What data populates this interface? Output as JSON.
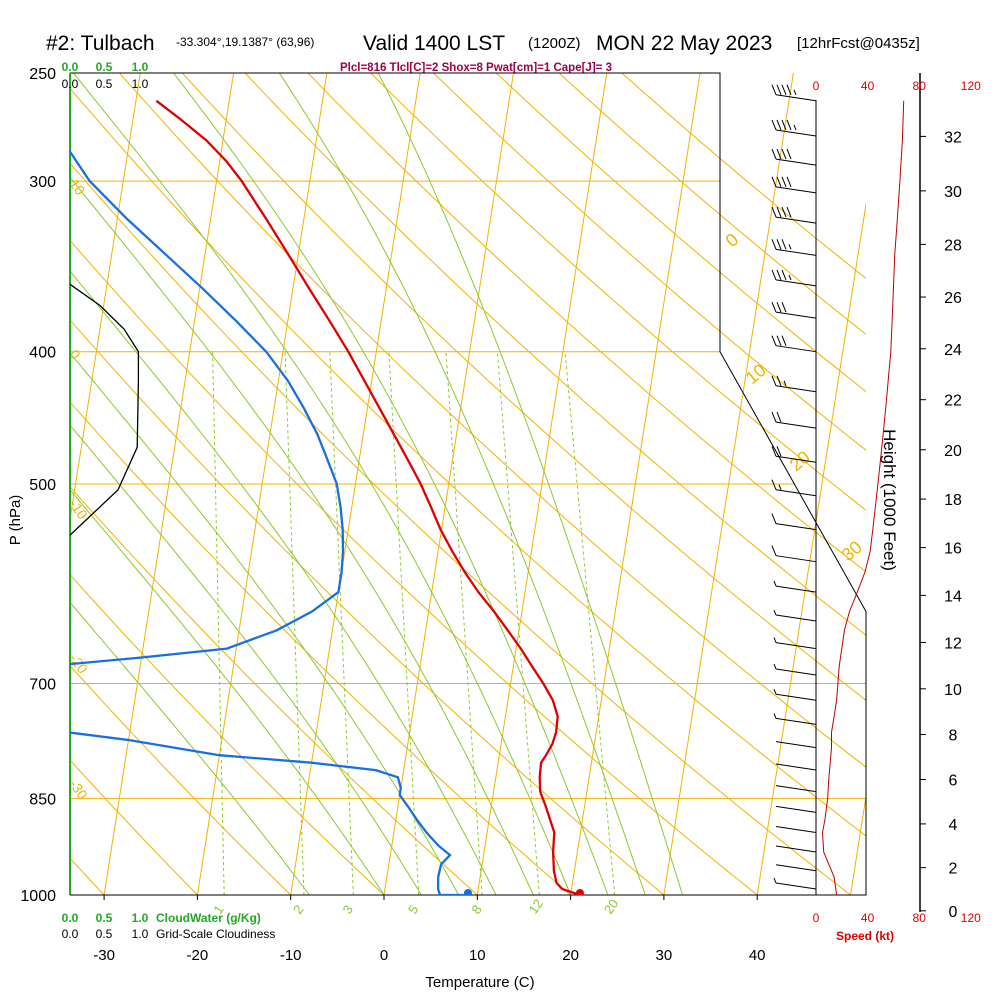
{
  "header": {
    "station": "#2: Tulbach",
    "coords": "-33.304°,19.1387° (63,96)",
    "valid": "Valid 1400 LST",
    "utc": "(1200Z)",
    "date": "MON 22 May 2023",
    "fcst": "[12hrFcst@0435z]",
    "params": "Plcl=816 Tlcl[C]=2 Shox=8 Pwat[cm]=1 Cape[J]= 3"
  },
  "colors": {
    "isotherm": "#f0b400",
    "dry_adiabat": "#f0b400",
    "moist_adiabat": "#8cc832",
    "mixing_ratio": "#8cc832",
    "temperature": "#e00000",
    "dewpoint": "#1a6fe0",
    "cloud": "#000000",
    "speed": "#c00000",
    "green_label": "#22aa22",
    "param_text": "#a0004a"
  },
  "chart_data": {
    "type": "skew-t",
    "xlabel": "Temperature (C)",
    "ylabel": "P (hPa)",
    "right_ylabel": "Height (1000 Feet)",
    "x_ticks": [
      "-30",
      "-20",
      "-10",
      "0",
      "10",
      "20",
      "30",
      "40"
    ],
    "x_tick_values": [
      -30,
      -20,
      -10,
      0,
      10,
      20,
      30,
      40
    ],
    "p_ticks": [
      "250",
      "300",
      "400",
      "500",
      "700",
      "850",
      "1000"
    ],
    "p_tick_values": [
      250,
      300,
      400,
      500,
      700,
      850,
      1000
    ],
    "height_ticks": [
      "0",
      "2",
      "4",
      "6",
      "8",
      "10",
      "12",
      "14",
      "16",
      "18",
      "20",
      "22",
      "24",
      "26",
      "28",
      "30",
      "32"
    ],
    "height_tick_values": [
      0,
      2,
      4,
      6,
      8,
      10,
      12,
      14,
      16,
      18,
      20,
      22,
      24,
      26,
      28,
      30,
      32
    ],
    "cloud_top_ticks": [
      "0.0",
      "0.5",
      "1.0"
    ],
    "cloud_bottom_ticks": [
      "0.0",
      "0.5",
      "1.0"
    ],
    "cloud_top_label": "Grid-Scale Cloudiness",
    "cloudwater_label": "CloudWater (g/Kg)",
    "speed_ticks": [
      "0",
      "40",
      "80",
      "120"
    ],
    "speed_tick_values": [
      0,
      40,
      80,
      120
    ],
    "speed_label": "Speed (kt)",
    "isotherm_labels": [
      "10",
      "0",
      "-10",
      "-20",
      "-30"
    ],
    "theta_labels": [
      "0",
      "10",
      "20",
      "30"
    ],
    "mixing_ratio_labels": [
      "1",
      "2",
      "3",
      "5",
      "8",
      "12",
      "20"
    ],
    "mixing_ratio_values": [
      1,
      2,
      3,
      5,
      8,
      12,
      20
    ],
    "temperature": [
      {
        "p": 1000,
        "t": 21.0
      },
      {
        "p": 995,
        "t": 20.0
      },
      {
        "p": 990,
        "t": 19.0
      },
      {
        "p": 980,
        "t": 18.3
      },
      {
        "p": 960,
        "t": 17.8
      },
      {
        "p": 930,
        "t": 17.4
      },
      {
        "p": 900,
        "t": 17.2
      },
      {
        "p": 880,
        "t": 16.5
      },
      {
        "p": 860,
        "t": 15.8
      },
      {
        "p": 840,
        "t": 15.0
      },
      {
        "p": 820,
        "t": 14.7
      },
      {
        "p": 800,
        "t": 14.6
      },
      {
        "p": 790,
        "t": 15.0
      },
      {
        "p": 775,
        "t": 15.5
      },
      {
        "p": 760,
        "t": 15.7
      },
      {
        "p": 740,
        "t": 15.6
      },
      {
        "p": 720,
        "t": 14.8
      },
      {
        "p": 700,
        "t": 13.5
      },
      {
        "p": 680,
        "t": 12.0
      },
      {
        "p": 660,
        "t": 10.5
      },
      {
        "p": 640,
        "t": 8.8
      },
      {
        "p": 620,
        "t": 7.0
      },
      {
        "p": 600,
        "t": 5.0
      },
      {
        "p": 580,
        "t": 3.2
      },
      {
        "p": 560,
        "t": 1.5
      },
      {
        "p": 540,
        "t": -0.1
      },
      {
        "p": 520,
        "t": -1.5
      },
      {
        "p": 500,
        "t": -3.0
      },
      {
        "p": 480,
        "t": -4.8
      },
      {
        "p": 460,
        "t": -6.7
      },
      {
        "p": 440,
        "t": -8.7
      },
      {
        "p": 420,
        "t": -10.8
      },
      {
        "p": 400,
        "t": -13.0
      },
      {
        "p": 380,
        "t": -15.5
      },
      {
        "p": 360,
        "t": -18.2
      },
      {
        "p": 340,
        "t": -21.0
      },
      {
        "p": 320,
        "t": -24.0
      },
      {
        "p": 300,
        "t": -27.3
      },
      {
        "p": 290,
        "t": -29.3
      },
      {
        "p": 280,
        "t": -31.8
      },
      {
        "p": 270,
        "t": -35.0
      },
      {
        "p": 262,
        "t": -37.8
      }
    ],
    "dewpoint": [
      {
        "p": 1000,
        "t": 9.0
      },
      {
        "p": 1000,
        "t": 6.0
      },
      {
        "p": 990,
        "t": 5.7
      },
      {
        "p": 970,
        "t": 5.5
      },
      {
        "p": 950,
        "t": 5.6
      },
      {
        "p": 935,
        "t": 6.4
      },
      {
        "p": 920,
        "t": 5.0
      },
      {
        "p": 900,
        "t": 3.5
      },
      {
        "p": 880,
        "t": 2.2
      },
      {
        "p": 860,
        "t": 1.0
      },
      {
        "p": 845,
        "t": 0.0
      },
      {
        "p": 835,
        "t": 0.0
      },
      {
        "p": 820,
        "t": -0.5
      },
      {
        "p": 810,
        "t": -3.0
      },
      {
        "p": 800,
        "t": -10.0
      },
      {
        "p": 790,
        "t": -20.0
      },
      {
        "p": 770,
        "t": -30.0
      },
      {
        "p": 755,
        "t": -40.0
      },
      {
        "p": 748,
        "t": -46.0
      },
      {
        "p": 700,
        "t": -60.0
      },
      {
        "p": 690,
        "t": -50.0
      },
      {
        "p": 680,
        "t": -40.0
      },
      {
        "p": 670,
        "t": -30.0
      },
      {
        "p": 660,
        "t": -21.0
      },
      {
        "p": 640,
        "t": -16.0
      },
      {
        "p": 620,
        "t": -12.5
      },
      {
        "p": 600,
        "t": -10.0
      },
      {
        "p": 580,
        "t": -10.0
      },
      {
        "p": 560,
        "t": -10.2
      },
      {
        "p": 540,
        "t": -10.6
      },
      {
        "p": 520,
        "t": -11.2
      },
      {
        "p": 500,
        "t": -12.0
      },
      {
        "p": 480,
        "t": -13.4
      },
      {
        "p": 460,
        "t": -14.9
      },
      {
        "p": 440,
        "t": -16.8
      },
      {
        "p": 420,
        "t": -19.0
      },
      {
        "p": 400,
        "t": -21.8
      },
      {
        "p": 380,
        "t": -25.5
      },
      {
        "p": 360,
        "t": -29.6
      },
      {
        "p": 340,
        "t": -34.1
      },
      {
        "p": 320,
        "t": -38.9
      },
      {
        "p": 300,
        "t": -43.6
      },
      {
        "p": 285,
        "t": -46.3
      },
      {
        "p": 270,
        "t": -48.4
      },
      {
        "p": 262,
        "t": -49.3
      }
    ],
    "cloudiness": [
      {
        "p": 357,
        "c": 0.0
      },
      {
        "p": 370,
        "c": 0.25
      },
      {
        "p": 385,
        "c": 0.45
      },
      {
        "p": 400,
        "c": 0.57
      },
      {
        "p": 420,
        "c": 0.57
      },
      {
        "p": 470,
        "c": 0.56
      },
      {
        "p": 505,
        "c": 0.4
      },
      {
        "p": 545,
        "c": 0.0
      }
    ],
    "speed": [
      {
        "p": 1000,
        "s": 16
      },
      {
        "p": 970,
        "s": 14
      },
      {
        "p": 950,
        "s": 10
      },
      {
        "p": 930,
        "s": 6
      },
      {
        "p": 900,
        "s": 5
      },
      {
        "p": 880,
        "s": 7
      },
      {
        "p": 850,
        "s": 9
      },
      {
        "p": 820,
        "s": 10
      },
      {
        "p": 800,
        "s": 11
      },
      {
        "p": 780,
        "s": 12
      },
      {
        "p": 760,
        "s": 12
      },
      {
        "p": 740,
        "s": 14
      },
      {
        "p": 720,
        "s": 16
      },
      {
        "p": 700,
        "s": 17
      },
      {
        "p": 680,
        "s": 18
      },
      {
        "p": 660,
        "s": 20
      },
      {
        "p": 640,
        "s": 22
      },
      {
        "p": 620,
        "s": 26
      },
      {
        "p": 600,
        "s": 32
      },
      {
        "p": 580,
        "s": 38
      },
      {
        "p": 560,
        "s": 42
      },
      {
        "p": 540,
        "s": 44
      },
      {
        "p": 520,
        "s": 46
      },
      {
        "p": 500,
        "s": 48
      },
      {
        "p": 480,
        "s": 50
      },
      {
        "p": 460,
        "s": 52
      },
      {
        "p": 440,
        "s": 54
      },
      {
        "p": 420,
        "s": 56
      },
      {
        "p": 400,
        "s": 58
      },
      {
        "p": 380,
        "s": 59
      },
      {
        "p": 360,
        "s": 60
      },
      {
        "p": 340,
        "s": 61
      },
      {
        "p": 320,
        "s": 63
      },
      {
        "p": 300,
        "s": 65
      },
      {
        "p": 280,
        "s": 67
      },
      {
        "p": 262,
        "s": 68
      }
    ],
    "wind_barbs": [
      {
        "p": 262,
        "s": 45
      },
      {
        "p": 278,
        "s": 45
      },
      {
        "p": 292,
        "s": 42
      },
      {
        "p": 306,
        "s": 40
      },
      {
        "p": 322,
        "s": 40
      },
      {
        "p": 340,
        "s": 38
      },
      {
        "p": 358,
        "s": 35
      },
      {
        "p": 378,
        "s": 30
      },
      {
        "p": 400,
        "s": 30
      },
      {
        "p": 428,
        "s": 25
      },
      {
        "p": 455,
        "s": 22
      },
      {
        "p": 482,
        "s": 20
      },
      {
        "p": 510,
        "s": 16
      },
      {
        "p": 540,
        "s": 12
      },
      {
        "p": 570,
        "s": 10
      },
      {
        "p": 600,
        "s": 8
      },
      {
        "p": 630,
        "s": 7
      },
      {
        "p": 660,
        "s": 6
      },
      {
        "p": 690,
        "s": 6
      },
      {
        "p": 720,
        "s": 5
      },
      {
        "p": 750,
        "s": 5
      },
      {
        "p": 780,
        "s": 4
      },
      {
        "p": 810,
        "s": 4
      },
      {
        "p": 840,
        "s": 3
      },
      {
        "p": 870,
        "s": 3
      },
      {
        "p": 900,
        "s": 3
      },
      {
        "p": 930,
        "s": 3
      },
      {
        "p": 960,
        "s": 4
      },
      {
        "p": 990,
        "s": 5
      }
    ]
  }
}
